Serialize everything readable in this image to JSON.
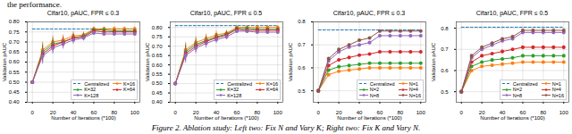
{
  "page_header": "the performance.",
  "caption": "Figure 2. Ablation study: Left two: Fix N and Vary K; Right two: Fix K and Vary N.",
  "chart_data": [
    {
      "type": "line",
      "title": "Cifar10, pAUC, FPR ≤ 0.3",
      "x_label": "Number of Iterations (*100)",
      "y_label": "Validation pAUC",
      "x": [
        0,
        10,
        20,
        30,
        40,
        50,
        60,
        70,
        80,
        90,
        100
      ],
      "xlim": [
        -5,
        105
      ],
      "xticks": [
        0,
        20,
        40,
        60,
        80,
        100
      ],
      "ylim": [
        0.4,
        0.8
      ],
      "yticks": [
        {
          "value": 0.4,
          "label": "0.40"
        },
        {
          "value": 0.45,
          "label": "0.45"
        },
        {
          "value": 0.5,
          "label": "0.50"
        },
        {
          "value": 0.55,
          "label": "0.55"
        },
        {
          "value": 0.6,
          "label": "0.60"
        },
        {
          "value": 0.65,
          "label": "0.65"
        },
        {
          "value": 0.7,
          "label": "0.70"
        },
        {
          "value": 0.75,
          "label": "0.75"
        },
        {
          "value": 0.8,
          "label": "0.80"
        }
      ],
      "grid": true,
      "legend": "lower right",
      "series": [
        {
          "name": "Centralized",
          "color": "#1f77b4",
          "line_style": "dashed",
          "marker": "none",
          "values": [
            0.765,
            0.765,
            0.765,
            0.765,
            0.765,
            0.765,
            0.765,
            0.765,
            0.765,
            0.765,
            0.765
          ]
        },
        {
          "name": "K=16",
          "color": "#ff7f0e",
          "line_style": "solid",
          "marker": "circle",
          "values": [
            0.5,
            0.66,
            0.7,
            0.71,
            0.73,
            0.735,
            0.765,
            0.765,
            0.765,
            0.765,
            0.765
          ],
          "errors": [
            0,
            0.04,
            0.03,
            0.025,
            0.02,
            0.015,
            0.01,
            0.01,
            0.01,
            0.01,
            0.01
          ]
        },
        {
          "name": "K=32",
          "color": "#2ca02c",
          "line_style": "solid",
          "marker": "circle",
          "values": [
            0.5,
            0.65,
            0.69,
            0.7,
            0.72,
            0.73,
            0.76,
            0.76,
            0.755,
            0.755,
            0.755
          ],
          "errors": [
            0,
            0.04,
            0.03,
            0.025,
            0.02,
            0.015,
            0.01,
            0.01,
            0.01,
            0.01,
            0.01
          ]
        },
        {
          "name": "K=64",
          "color": "#d62728",
          "line_style": "solid",
          "marker": "circle",
          "values": [
            0.5,
            0.64,
            0.68,
            0.7,
            0.72,
            0.725,
            0.755,
            0.75,
            0.75,
            0.75,
            0.75
          ],
          "errors": [
            0,
            0.04,
            0.03,
            0.025,
            0.02,
            0.015,
            0.01,
            0.01,
            0.01,
            0.01,
            0.01
          ]
        },
        {
          "name": "K=128",
          "color": "#9467bd",
          "line_style": "solid",
          "marker": "circle",
          "values": [
            0.5,
            0.63,
            0.67,
            0.69,
            0.71,
            0.72,
            0.745,
            0.74,
            0.74,
            0.74,
            0.74
          ],
          "errors": [
            0,
            0.04,
            0.03,
            0.025,
            0.02,
            0.015,
            0.01,
            0.01,
            0.01,
            0.01,
            0.01
          ]
        }
      ]
    },
    {
      "type": "line",
      "title": "Cifar10, pAUC, FPR ≤ 0.5",
      "x_label": "Number of Iterations (*100)",
      "y_label": "Validation pAUC",
      "x": [
        0,
        10,
        20,
        30,
        40,
        50,
        60,
        70,
        80,
        90,
        100
      ],
      "xlim": [
        -5,
        105
      ],
      "xticks": [
        0,
        20,
        40,
        60,
        80,
        100
      ],
      "ylim": [
        0.4,
        0.83
      ],
      "yticks": [
        {
          "value": 0.4,
          "label": "0.40"
        },
        {
          "value": 0.45,
          "label": "0.45"
        },
        {
          "value": 0.5,
          "label": "0.50"
        },
        {
          "value": 0.55,
          "label": "0.55"
        },
        {
          "value": 0.6,
          "label": "0.60"
        },
        {
          "value": 0.65,
          "label": "0.65"
        },
        {
          "value": 0.7,
          "label": "0.70"
        },
        {
          "value": 0.75,
          "label": "0.75"
        },
        {
          "value": 0.8,
          "label": "0.80"
        }
      ],
      "grid": true,
      "legend": "lower right",
      "series": [
        {
          "name": "Centralized",
          "color": "#1f77b4",
          "line_style": "dashed",
          "marker": "none",
          "values": [
            0.81,
            0.81,
            0.81,
            0.81,
            0.81,
            0.81,
            0.81,
            0.81,
            0.81,
            0.81,
            0.81
          ]
        },
        {
          "name": "K=16",
          "color": "#ff7f0e",
          "line_style": "solid",
          "marker": "circle",
          "values": [
            0.5,
            0.68,
            0.72,
            0.74,
            0.76,
            0.77,
            0.8,
            0.8,
            0.8,
            0.8,
            0.8
          ],
          "errors": [
            0,
            0.04,
            0.03,
            0.025,
            0.02,
            0.015,
            0.01,
            0.01,
            0.01,
            0.01,
            0.01
          ]
        },
        {
          "name": "K=32",
          "color": "#2ca02c",
          "line_style": "solid",
          "marker": "circle",
          "values": [
            0.5,
            0.67,
            0.71,
            0.73,
            0.75,
            0.765,
            0.795,
            0.795,
            0.79,
            0.79,
            0.79
          ],
          "errors": [
            0,
            0.04,
            0.03,
            0.025,
            0.02,
            0.015,
            0.01,
            0.01,
            0.01,
            0.01,
            0.01
          ]
        },
        {
          "name": "K=64",
          "color": "#d62728",
          "line_style": "solid",
          "marker": "circle",
          "values": [
            0.5,
            0.66,
            0.7,
            0.725,
            0.745,
            0.76,
            0.79,
            0.785,
            0.785,
            0.785,
            0.785
          ],
          "errors": [
            0,
            0.04,
            0.03,
            0.025,
            0.02,
            0.015,
            0.01,
            0.01,
            0.01,
            0.01,
            0.01
          ]
        },
        {
          "name": "K=128",
          "color": "#9467bd",
          "line_style": "solid",
          "marker": "circle",
          "values": [
            0.5,
            0.65,
            0.69,
            0.715,
            0.735,
            0.75,
            0.78,
            0.78,
            0.775,
            0.775,
            0.775
          ],
          "errors": [
            0,
            0.04,
            0.03,
            0.025,
            0.02,
            0.015,
            0.01,
            0.01,
            0.01,
            0.01,
            0.01
          ]
        }
      ]
    },
    {
      "type": "line",
      "title": "Cifar10, pAUC, FPR ≤ 0.3",
      "x_label": "Number of Iterations (*100)",
      "y_label": "Validation pAUC",
      "x": [
        0,
        10,
        20,
        30,
        40,
        50,
        60,
        70,
        80,
        90,
        100
      ],
      "xlim": [
        -5,
        105
      ],
      "xticks": [
        0,
        20,
        40,
        60,
        80,
        100
      ],
      "ylim": [
        0.45,
        0.8
      ],
      "yticks": [
        0.5,
        0.6,
        0.7,
        0.8
      ],
      "grid": true,
      "legend": "lower right",
      "series": [
        {
          "name": "Centralized",
          "color": "#1f77b4",
          "line_style": "dashed",
          "marker": "none",
          "values": [
            0.765,
            0.765,
            0.765,
            0.765,
            0.765,
            0.765,
            0.765,
            0.765,
            0.765,
            0.765,
            0.765
          ]
        },
        {
          "name": "N=1",
          "color": "#ff7f0e",
          "line_style": "solid",
          "marker": "circle",
          "values": [
            0.5,
            0.57,
            0.585,
            0.59,
            0.595,
            0.6,
            0.6,
            0.6,
            0.6,
            0.6,
            0.6
          ]
        },
        {
          "name": "N=2",
          "color": "#2ca02c",
          "line_style": "solid",
          "marker": "circle",
          "values": [
            0.5,
            0.59,
            0.605,
            0.61,
            0.615,
            0.62,
            0.62,
            0.62,
            0.62,
            0.62,
            0.62
          ]
        },
        {
          "name": "N=4",
          "color": "#d62728",
          "line_style": "solid",
          "marker": "circle",
          "values": [
            0.5,
            0.61,
            0.635,
            0.645,
            0.655,
            0.66,
            0.67,
            0.67,
            0.67,
            0.67,
            0.67
          ]
        },
        {
          "name": "N=8",
          "color": "#9467bd",
          "line_style": "solid",
          "marker": "circle",
          "values": [
            0.5,
            0.63,
            0.67,
            0.69,
            0.7,
            0.71,
            0.74,
            0.74,
            0.74,
            0.74,
            0.74
          ]
        },
        {
          "name": "N=16",
          "color": "#8c564b",
          "line_style": "solid",
          "marker": "circle",
          "values": [
            0.5,
            0.64,
            0.68,
            0.7,
            0.72,
            0.73,
            0.76,
            0.76,
            0.76,
            0.76,
            0.76
          ]
        }
      ]
    },
    {
      "type": "line",
      "title": "Cifar10, pAUC, FPR ≤ 0.5",
      "x_label": "Number of Iterations (*100)",
      "y_label": "Validation pAUC",
      "x": [
        0,
        10,
        20,
        30,
        40,
        50,
        60,
        70,
        80,
        90,
        100
      ],
      "xlim": [
        -5,
        105
      ],
      "xticks": [
        0,
        20,
        40,
        60,
        80,
        100
      ],
      "ylim": [
        0.45,
        0.83
      ],
      "yticks": [
        0.5,
        0.6,
        0.7,
        0.8
      ],
      "grid": true,
      "legend": "lower right",
      "series": [
        {
          "name": "Centralized",
          "color": "#1f77b4",
          "line_style": "dashed",
          "marker": "none",
          "values": [
            0.805,
            0.805,
            0.805,
            0.805,
            0.805,
            0.805,
            0.805,
            0.805,
            0.805,
            0.805,
            0.805
          ]
        },
        {
          "name": "N=1",
          "color": "#ff7f0e",
          "line_style": "solid",
          "marker": "circle",
          "values": [
            0.5,
            0.6,
            0.62,
            0.625,
            0.63,
            0.635,
            0.64,
            0.64,
            0.64,
            0.64,
            0.64
          ]
        },
        {
          "name": "N=2",
          "color": "#2ca02c",
          "line_style": "solid",
          "marker": "circle",
          "values": [
            0.5,
            0.62,
            0.64,
            0.65,
            0.655,
            0.66,
            0.67,
            0.67,
            0.67,
            0.67,
            0.67
          ]
        },
        {
          "name": "N=4",
          "color": "#d62728",
          "line_style": "solid",
          "marker": "circle",
          "values": [
            0.5,
            0.64,
            0.67,
            0.68,
            0.69,
            0.7,
            0.71,
            0.71,
            0.71,
            0.71,
            0.71
          ]
        },
        {
          "name": "N=8",
          "color": "#9467bd",
          "line_style": "solid",
          "marker": "circle",
          "values": [
            0.5,
            0.66,
            0.7,
            0.72,
            0.74,
            0.75,
            0.78,
            0.78,
            0.78,
            0.78,
            0.78
          ]
        },
        {
          "name": "N=16",
          "color": "#8c564b",
          "line_style": "solid",
          "marker": "circle",
          "values": [
            0.5,
            0.67,
            0.71,
            0.73,
            0.75,
            0.76,
            0.79,
            0.79,
            0.79,
            0.79,
            0.79
          ]
        }
      ]
    }
  ]
}
